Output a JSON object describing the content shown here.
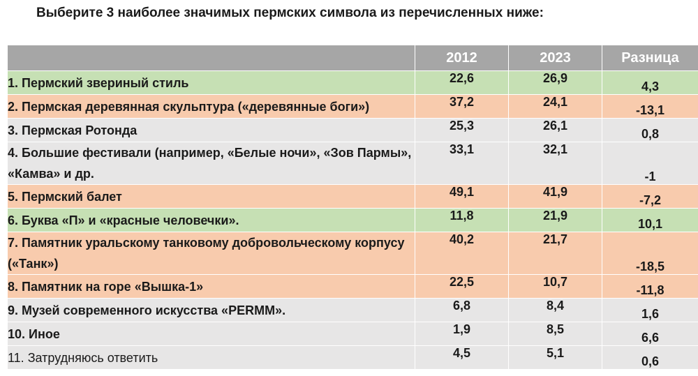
{
  "title": "Выберите 3 наиболее значимых пермских символа из перечисленных ниже:",
  "colors": {
    "header": "#a6a6a6",
    "green": "#c6e0b4",
    "orange": "#f8cbad",
    "grey": "#e7e6e6"
  },
  "table": {
    "columns": [
      "",
      "2012",
      "2023",
      "Разница"
    ],
    "rows": [
      {
        "label": "1. Пермский звериный стиль",
        "v2012": "22,6",
        "v2023": "26,9",
        "diff": "4,3",
        "tone": "green"
      },
      {
        "label": "2. Пермская деревянная скульптура («деревянные боги»)",
        "v2012": "37,2",
        "v2023": "24,1",
        "diff": "-13,1",
        "tone": "orange"
      },
      {
        "label": "3. Пермская Ротонда",
        "v2012": "25,3",
        "v2023": "26,1",
        "diff": "0,8",
        "tone": "grey"
      },
      {
        "label": "4. Большие фестивали (например, «Белые ночи», «Зов Пармы», «Камва» и др.",
        "v2012": "33,1",
        "v2023": "32,1",
        "diff": "-1",
        "tone": "grey"
      },
      {
        "label": "5. Пермский балет",
        "v2012": "49,1",
        "v2023": "41,9",
        "diff": "-7,2",
        "tone": "orange"
      },
      {
        "label": "6. Буква «П» и «красные человечки».",
        "v2012": "11,8",
        "v2023": "21,9",
        "diff": "10,1",
        "tone": "green"
      },
      {
        "label": "7. Памятник уральскому танковому добровольческому корпусу («Танк»)",
        "v2012": "40,2",
        "v2023": "21,7",
        "diff": "-18,5",
        "tone": "orange"
      },
      {
        "label": "8. Памятник на горе «Вышка-1»",
        "v2012": "22,5",
        "v2023": "10,7",
        "diff": "-11,8",
        "tone": "orange"
      },
      {
        "label": "9. Музей современного искусства «PERMM».",
        "v2012": "6,8",
        "v2023": "8,4",
        "diff": "1,6",
        "tone": "grey"
      },
      {
        "label": "10. Иное",
        "v2012": "1,9",
        "v2023": "8,5",
        "diff": "6,6",
        "tone": "grey"
      },
      {
        "label": "11. Затрудняюсь ответить",
        "v2012": "4,5",
        "v2023": "5,1",
        "diff": "0,6",
        "tone": "grey"
      }
    ]
  }
}
